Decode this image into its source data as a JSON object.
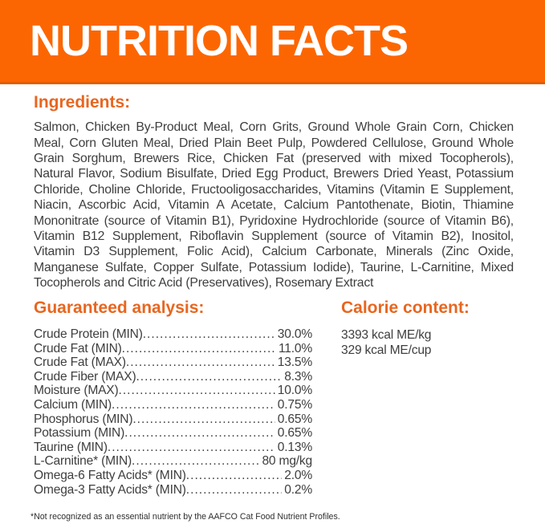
{
  "header": {
    "title": "NUTRITION FACTS"
  },
  "ingredients": {
    "heading": "Ingredients:",
    "text": "Salmon, Chicken By-Product Meal, Corn Grits, Ground Whole Grain Corn, Chicken Meal, Corn Gluten Meal, Dried Plain Beet Pulp, Powdered Cellulose, Ground Whole Grain Sorghum, Brewers Rice, Chicken Fat (preserved with mixed Tocopherols), Natural Flavor, Sodium Bisulfate, Dried Egg Product, Brewers Dried Yeast, Potassium Chloride, Choline Chloride, Fructooligosaccharides, Vitamins (Vitamin E Supplement, Niacin, Ascorbic Acid, Vitamin A Acetate, Calcium Pantothenate, Biotin, Thiamine Mononitrate (source of Vitamin B1), Pyridoxine Hydrochloride (source of Vitamin B6), Vitamin B12 Supplement, Riboflavin Supplement (source of Vitamin B2), Inositol, Vitamin D3 Supplement, Folic Acid), Calcium Carbonate, Minerals (Zinc Oxide, Manganese Sulfate, Copper Sulfate, Potassium Iodide), Taurine, L-Carnitine, Mixed Tocopherols and Citric Acid (Preservatives), Rosemary Extract"
  },
  "guaranteed_analysis": {
    "heading": "Guaranteed analysis:",
    "rows": [
      {
        "label": "Crude Protein (MIN)",
        "value": "30.0%"
      },
      {
        "label": "Crude Fat (MIN)",
        "value": "11.0%"
      },
      {
        "label": "Crude Fat (MAX)",
        "value": "13.5%"
      },
      {
        "label": "Crude Fiber (MAX)",
        "value": "8.3%"
      },
      {
        "label": "Moisture (MAX)",
        "value": "10.0%"
      },
      {
        "label": "Calcium (MIN)",
        "value": "0.75%"
      },
      {
        "label": "Phosphorus (MIN)",
        "value": "0.65%"
      },
      {
        "label": "Potassium (MIN)",
        "value": "0.65%"
      },
      {
        "label": "Taurine (MIN)",
        "value": "0.13%"
      },
      {
        "label": "L-Carnitine* (MIN)",
        "value": "80 mg/kg"
      },
      {
        "label": "Omega-6 Fatty Acids* (MIN)",
        "value": "2.0%"
      },
      {
        "label": "Omega-3 Fatty Acids* (MIN)",
        "value": "0.2%"
      }
    ]
  },
  "calorie_content": {
    "heading": "Calorie content:",
    "lines": [
      "3393 kcal ME/kg",
      "329 kcal ME/cup"
    ]
  },
  "footnote": "*Not recognized as an essential nutrient by the AAFCO Cat Food Nutrient Profiles.",
  "colors": {
    "banner_orange": "#fc6602",
    "banner_edge": "#e25d02",
    "heading_orange": "#e8661f",
    "text_color": "#3e3e3e"
  }
}
